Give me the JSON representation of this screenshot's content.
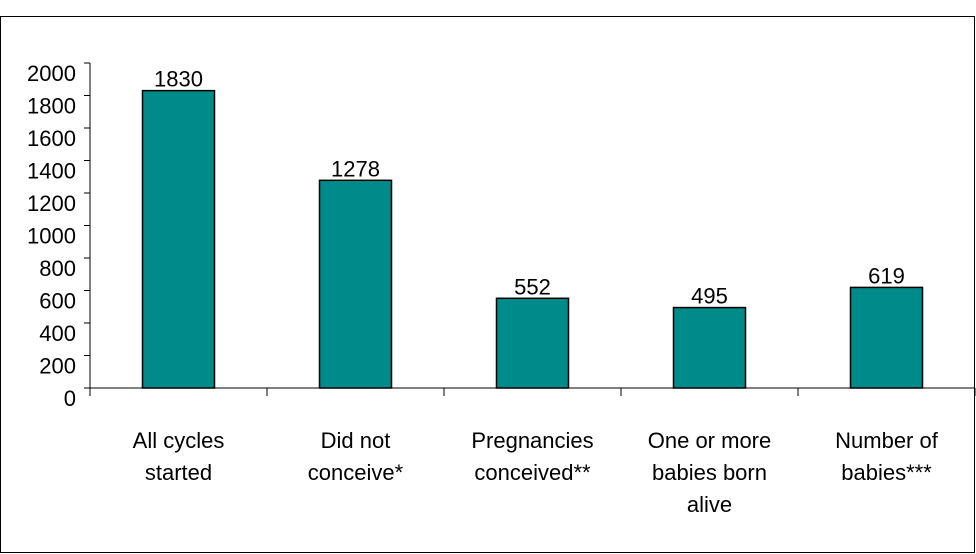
{
  "chart_data": {
    "type": "bar",
    "categories": [
      [
        "All cycles",
        "started"
      ],
      [
        "Did not",
        "conceive*"
      ],
      [
        "Pregnancies",
        "conceived**"
      ],
      [
        "One or more",
        "babies born",
        "alive"
      ],
      [
        "Number of",
        "babies***"
      ]
    ],
    "values": [
      1830,
      1278,
      552,
      495,
      619
    ],
    "data_labels": [
      "1830",
      "1278",
      "552",
      "495",
      "619"
    ],
    "y_ticks": [
      "0",
      "200",
      "400",
      "600",
      "800",
      "1000",
      "1200",
      "1400",
      "1600",
      "1800",
      "2000"
    ],
    "ylim": [
      0,
      2000
    ],
    "title": "",
    "xlabel": "",
    "ylabel": "",
    "grid": false,
    "legend": "none",
    "bar_color": "#008B8B",
    "bar_outline": "#000000"
  }
}
